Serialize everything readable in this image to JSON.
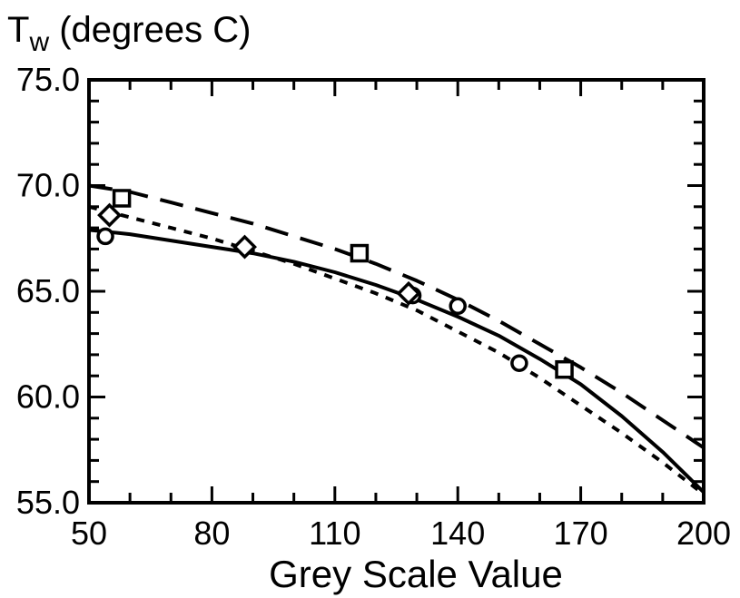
{
  "chart_data": {
    "type": "line",
    "ylabel_main": "T",
    "ylabel_sub": "w",
    "ylabel_rest": " (degrees C)",
    "xlabel": "Grey Scale Value",
    "xlim": [
      50,
      200
    ],
    "ylim": [
      55,
      75
    ],
    "x_ticks": [
      "50",
      "80",
      "110",
      "140",
      "170",
      "200"
    ],
    "y_ticks": [
      "55.0",
      "60.0",
      "65.0",
      "70.0",
      "75.0"
    ],
    "grid": false,
    "series": [
      {
        "style": "solid",
        "x": [
          50,
          60,
          70,
          80,
          90,
          100,
          110,
          120,
          130,
          140,
          150,
          160,
          170,
          180,
          190,
          200
        ],
        "y": [
          67.9,
          67.7,
          67.4,
          67.1,
          66.8,
          66.4,
          65.9,
          65.3,
          64.6,
          63.8,
          62.9,
          61.8,
          60.6,
          59.1,
          57.4,
          55.5
        ]
      },
      {
        "style": "long-dash",
        "x": [
          50,
          60,
          70,
          80,
          90,
          100,
          110,
          120,
          130,
          140,
          150,
          160,
          170,
          180,
          190,
          200
        ],
        "y": [
          70.0,
          69.7,
          69.2,
          68.7,
          68.2,
          67.6,
          67.0,
          66.3,
          65.5,
          64.6,
          63.6,
          62.5,
          61.4,
          60.2,
          58.9,
          57.6
        ]
      },
      {
        "style": "short-dash",
        "x": [
          50,
          60,
          70,
          80,
          90,
          100,
          110,
          120,
          130,
          140,
          150,
          160,
          170,
          180,
          190,
          200
        ],
        "y": [
          69.0,
          68.5,
          68.0,
          67.5,
          66.9,
          66.3,
          65.6,
          64.9,
          64.1,
          63.1,
          62.1,
          60.9,
          59.6,
          58.3,
          56.9,
          55.4
        ]
      }
    ],
    "markers": [
      {
        "shape": "circle",
        "x": [
          54,
          129,
          140,
          155
        ],
        "y": [
          67.6,
          64.8,
          64.3,
          61.6
        ]
      },
      {
        "shape": "square",
        "x": [
          58,
          116,
          166
        ],
        "y": [
          69.4,
          66.8,
          61.3
        ]
      },
      {
        "shape": "diamond",
        "x": [
          55,
          88,
          128
        ],
        "y": [
          68.6,
          67.1,
          64.9
        ]
      }
    ]
  }
}
